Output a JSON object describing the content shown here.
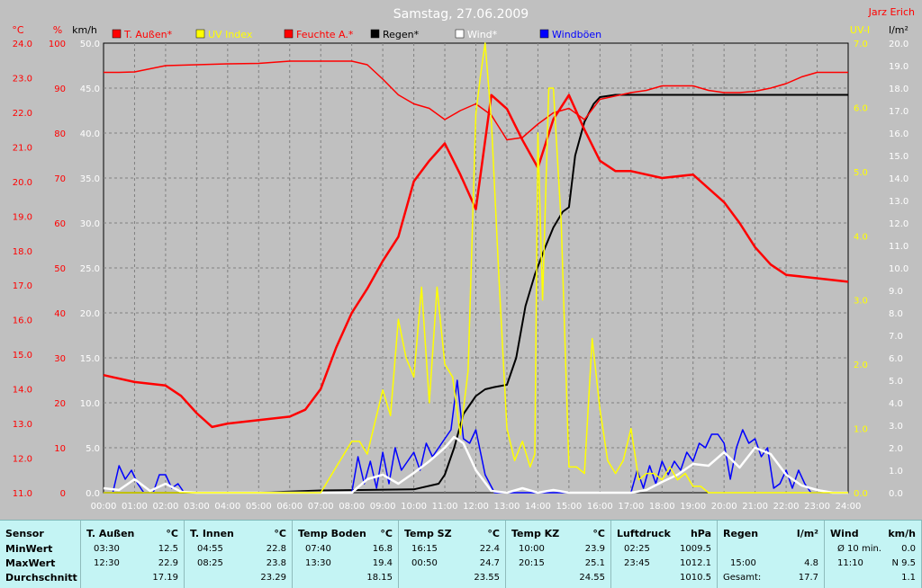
{
  "chart_data": {
    "type": "line",
    "title": "Samstag, 27.06.2009",
    "author": "Jarz Erich",
    "x_ticks": [
      "00:00",
      "01:00",
      "02:00",
      "03:00",
      "04:00",
      "05:00",
      "06:00",
      "07:00",
      "08:00",
      "09:00",
      "10:00",
      "11:00",
      "12:00",
      "13:00",
      "14:00",
      "15:00",
      "16:00",
      "17:00",
      "18:00",
      "19:00",
      "20:00",
      "21:00",
      "22:00",
      "23:00",
      "24:00"
    ],
    "grid": true,
    "axes": {
      "temp": {
        "unit": "°C",
        "range": [
          11.0,
          24.0
        ],
        "ticks": [
          "11.0",
          "12.0",
          "13.0",
          "14.0",
          "15.0",
          "16.0",
          "17.0",
          "18.0",
          "19.0",
          "20.0",
          "21.0",
          "22.0",
          "23.0",
          "24.0"
        ],
        "color": "#ff0000"
      },
      "humidity": {
        "unit": "%",
        "range": [
          0,
          100
        ],
        "ticks": [
          "0",
          "10",
          "20",
          "30",
          "40",
          "50",
          "60",
          "70",
          "80",
          "90",
          "100"
        ],
        "color": "#ff0000"
      },
      "wind": {
        "unit": "km/h",
        "range": [
          0,
          50
        ],
        "ticks": [
          "0.0",
          "5.0",
          "10.0",
          "15.0",
          "20.0",
          "25.0",
          "30.0",
          "35.0",
          "40.0",
          "45.0",
          "50.0"
        ],
        "color": "#000000"
      },
      "uv": {
        "unit": "UV-I",
        "range": [
          0,
          7
        ],
        "ticks": [
          "0.0",
          "1.0",
          "2.0",
          "3.0",
          "4.0",
          "5.0",
          "6.0",
          "7.0"
        ],
        "color": "#ffff00"
      },
      "rain": {
        "unit": "l/m²",
        "range": [
          0,
          20
        ],
        "ticks": [
          "0.0",
          "1.0",
          "2.0",
          "3.0",
          "4.0",
          "5.0",
          "6.0",
          "7.0",
          "8.0",
          "9.0",
          "10.0",
          "11.0",
          "12.0",
          "13.0",
          "14.0",
          "15.0",
          "16.0",
          "17.0",
          "18.0",
          "19.0",
          "20.0"
        ],
        "color": "#000000"
      }
    },
    "legend": [
      {
        "name": "T. Außen*",
        "color": "#ff0000"
      },
      {
        "name": "UV Index",
        "color": "#ffff00"
      },
      {
        "name": "Feuchte A.*",
        "color": "#ff0000"
      },
      {
        "name": "Regen*",
        "color": "#000000"
      },
      {
        "name": "Wind*",
        "color": "#ffffff"
      },
      {
        "name": "Windböen",
        "color": "#0000ff"
      }
    ],
    "series": [
      {
        "name": "T. Außen*",
        "axis": "temp",
        "color": "#ff0000",
        "x": [
          0,
          1,
          2,
          2.5,
          3,
          3.5,
          4,
          5,
          6,
          6.5,
          7,
          7.5,
          8,
          8.5,
          9,
          9.5,
          10,
          10.5,
          11,
          11.5,
          12,
          12.5,
          13,
          13.5,
          14,
          14.5,
          15,
          15.5,
          16,
          16.5,
          17,
          18,
          19,
          20,
          20.5,
          21,
          21.5,
          22,
          23,
          24
        ],
        "y": [
          14.4,
          14.2,
          14.1,
          13.8,
          13.3,
          12.9,
          13.0,
          13.1,
          13.2,
          13.4,
          14.0,
          15.2,
          16.2,
          16.9,
          17.7,
          18.4,
          20.0,
          20.6,
          21.1,
          20.2,
          19.2,
          22.5,
          22.1,
          21.2,
          20.4,
          21.8,
          22.5,
          21.5,
          20.6,
          20.3,
          20.3,
          20.1,
          20.2,
          19.4,
          18.8,
          18.1,
          17.6,
          17.3,
          17.2,
          17.1
        ]
      },
      {
        "name": "Feuchte A.*",
        "axis": "humidity",
        "color": "#ff0000",
        "x": [
          0,
          0.5,
          1,
          1.5,
          2,
          3,
          4,
          5,
          6,
          7,
          7.5,
          8,
          8.5,
          9,
          9.5,
          10,
          10.5,
          11,
          11.5,
          12,
          12.5,
          13,
          13.5,
          14,
          14.5,
          15,
          15.5,
          16,
          17,
          17.5,
          18,
          18.5,
          19,
          19.5,
          20,
          20.5,
          21,
          21.5,
          22,
          22.5,
          23,
          24
        ],
        "y": [
          93.5,
          93.5,
          93.6,
          94.3,
          95.0,
          95.2,
          95.4,
          95.5,
          96.0,
          96.0,
          96.0,
          96.0,
          95.2,
          92.0,
          88.5,
          86.5,
          85.5,
          83.0,
          85.0,
          86.5,
          84.0,
          78.5,
          79.0,
          82.0,
          84.5,
          85.5,
          83.0,
          87.5,
          89.0,
          89.5,
          90.5,
          90.5,
          90.5,
          89.5,
          89.0,
          89.0,
          89.3,
          90.0,
          91.0,
          92.5,
          93.5,
          93.5
        ]
      },
      {
        "name": "UV Index",
        "axis": "uv",
        "color": "#ffff00",
        "x": [
          0,
          7,
          7.5,
          8,
          8.25,
          8.5,
          8.75,
          9,
          9.25,
          9.5,
          9.75,
          10,
          10.25,
          10.5,
          10.75,
          11,
          11.25,
          11.5,
          11.75,
          12,
          12.15,
          12.3,
          12.5,
          12.75,
          13,
          13.25,
          13.5,
          13.75,
          13.9,
          14,
          14.15,
          14.35,
          14.5,
          14.75,
          15,
          15.25,
          15.5,
          15.75,
          16,
          16.25,
          16.5,
          16.75,
          17,
          17.25,
          17.5,
          17.75,
          18,
          18.25,
          18.5,
          18.75,
          19,
          19.25,
          19.5,
          20,
          24
        ],
        "y": [
          0,
          0,
          0.4,
          0.8,
          0.8,
          0.6,
          1.1,
          1.6,
          1.2,
          2.7,
          2.1,
          1.8,
          3.2,
          1.4,
          3.2,
          2.0,
          1.8,
          0.9,
          1.9,
          5.9,
          6.5,
          7.0,
          5.8,
          3.3,
          1.0,
          0.5,
          0.8,
          0.4,
          0.6,
          5.6,
          3.0,
          6.3,
          6.3,
          4.2,
          0.4,
          0.4,
          0.3,
          2.4,
          1.3,
          0.5,
          0.3,
          0.5,
          1.0,
          0.2,
          0.3,
          0.3,
          0.2,
          0.4,
          0.2,
          0.3,
          0.1,
          0.1,
          0.0,
          0,
          0
        ]
      },
      {
        "name": "Regen*",
        "axis": "rain",
        "color": "#000000",
        "x": [
          0,
          5,
          7,
          10,
          10.8,
          11,
          11.3,
          11.6,
          12,
          12.3,
          12.6,
          13,
          13.3,
          13.6,
          13.9,
          14.2,
          14.5,
          14.8,
          15,
          15.2,
          15.5,
          15.8,
          16,
          16.5,
          17,
          24
        ],
        "y": [
          0,
          0,
          0.1,
          0.15,
          0.4,
          0.8,
          2.0,
          3.5,
          4.3,
          4.6,
          4.7,
          4.8,
          6.0,
          8.3,
          9.7,
          10.8,
          11.8,
          12.5,
          12.7,
          15.0,
          16.5,
          17.3,
          17.6,
          17.7,
          17.7,
          17.7
        ]
      },
      {
        "name": "Wind*",
        "axis": "wind",
        "color": "#ffffff",
        "x": [
          0,
          0.5,
          1,
          1.5,
          2,
          2.5,
          3,
          3.5,
          4,
          8,
          8.5,
          9,
          9.5,
          10,
          10.5,
          11,
          11.3,
          11.6,
          12,
          12.5,
          13,
          13.5,
          14,
          14.5,
          15,
          17,
          17.5,
          18,
          18.5,
          19,
          19.5,
          20,
          20.5,
          21,
          21.5,
          22,
          22.5,
          23,
          23.5,
          24
        ],
        "y": [
          0.5,
          0.3,
          1.5,
          0.2,
          1.0,
          0.1,
          0,
          0,
          0,
          0,
          1.5,
          2.0,
          1.0,
          2.2,
          3.5,
          5.0,
          6.2,
          5.5,
          2.5,
          0.2,
          0,
          0.5,
          0,
          0.3,
          0,
          0,
          0.3,
          1.2,
          2.0,
          3.2,
          3.0,
          4.5,
          2.8,
          5.0,
          4.3,
          2.0,
          0.8,
          0.3,
          0,
          0
        ]
      },
      {
        "name": "Windböen",
        "axis": "wind",
        "color": "#0000ff",
        "x": [
          0,
          0.3,
          0.5,
          0.7,
          0.9,
          1.1,
          1.3,
          1.6,
          1.8,
          2.0,
          2.2,
          2.4,
          2.6,
          8,
          8.2,
          8.4,
          8.6,
          8.8,
          9.0,
          9.2,
          9.4,
          9.6,
          9.8,
          10.0,
          10.2,
          10.4,
          10.6,
          10.8,
          11.0,
          11.2,
          11.4,
          11.6,
          11.8,
          12.0,
          12.3,
          12.6,
          17,
          17.2,
          17.4,
          17.6,
          17.8,
          18.0,
          18.2,
          18.4,
          18.6,
          18.8,
          19.0,
          19.2,
          19.4,
          19.6,
          19.8,
          20.0,
          20.2,
          20.4,
          20.6,
          20.8,
          21.0,
          21.2,
          21.4,
          21.6,
          21.8,
          22.0,
          22.2,
          22.4,
          22.6,
          22.8,
          23,
          24
        ],
        "y": [
          0,
          0,
          3.0,
          1.5,
          2.5,
          1.0,
          0,
          0,
          2.0,
          2.0,
          0.5,
          1.0,
          0,
          0,
          4.0,
          1.0,
          3.5,
          0.5,
          4.5,
          1.0,
          5.0,
          2.5,
          3.5,
          4.5,
          2.5,
          5.5,
          4.0,
          5.0,
          6.0,
          7.0,
          12.5,
          6.0,
          5.5,
          7.0,
          2.0,
          0,
          0,
          2.5,
          0.5,
          3.0,
          1.0,
          3.5,
          2.0,
          3.5,
          2.5,
          4.5,
          3.5,
          5.5,
          5.0,
          6.5,
          6.5,
          5.5,
          1.5,
          5.0,
          7.0,
          5.5,
          6.0,
          4.0,
          5.0,
          0.5,
          1.0,
          2.5,
          0.5,
          2.5,
          1.0,
          0,
          0,
          0
        ]
      }
    ]
  },
  "stats": {
    "columns": [
      {
        "id": "sensor",
        "header": "Sensor",
        "unit": "",
        "rows": [
          "MinWert",
          "MaxWert",
          "Durchschnitt"
        ]
      },
      {
        "id": "t-aussen",
        "header": "T. Außen",
        "unit": "°C",
        "min_time": "03:30",
        "min": "12.5",
        "max_time": "12:30",
        "max": "22.9",
        "avg": "17.19"
      },
      {
        "id": "t-innen",
        "header": "T. Innen",
        "unit": "°C",
        "min_time": "04:55",
        "min": "22.8",
        "max_time": "08:25",
        "max": "23.8",
        "avg": "23.29"
      },
      {
        "id": "temp-boden",
        "header": "Temp Boden",
        "unit": "°C",
        "min_time": "07:40",
        "min": "16.8",
        "max_time": "13:30",
        "max": "19.4",
        "avg": "18.15"
      },
      {
        "id": "temp-sz",
        "header": "Temp SZ",
        "unit": "°C",
        "min_time": "16:15",
        "min": "22.4",
        "max_time": "00:50",
        "max": "24.7",
        "avg": "23.55"
      },
      {
        "id": "temp-kz",
        "header": "Temp KZ",
        "unit": "°C",
        "min_time": "10:00",
        "min": "23.9",
        "max_time": "20:15",
        "max": "25.1",
        "avg": "24.55"
      },
      {
        "id": "luftdruck",
        "header": "Luftdruck",
        "unit": "hPa",
        "min_time": "02:25",
        "min": "1009.5",
        "max_time": "23:45",
        "max": "1012.1",
        "avg": "1010.5"
      },
      {
        "id": "regen",
        "header": "Regen",
        "unit": "l/m²",
        "min_time": "",
        "min": "",
        "max_time": "15:00",
        "max": "4.8",
        "avg_label": "Gesamt:",
        "avg": "17.7"
      },
      {
        "id": "wind",
        "header": "Wind",
        "unit": "km/h",
        "min_time": "Ø 10 min.",
        "min": "0.0",
        "max_time": "11:10",
        "max": "N 9.5",
        "avg": "1.1"
      }
    ]
  }
}
